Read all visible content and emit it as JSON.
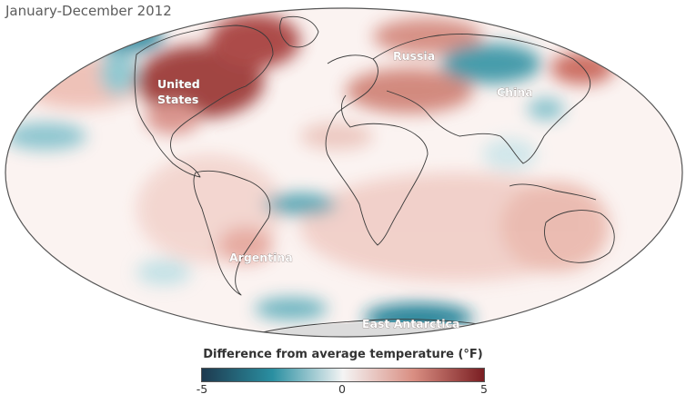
{
  "title": "January-December 2012",
  "map_labels": {
    "united_states": [
      "United",
      "States"
    ],
    "russia": "Russia",
    "china": "China",
    "argentina": "Argentina",
    "east_antarctica": "East Antarctica"
  },
  "legend": {
    "title": "Difference from average temperature (°F)",
    "min_label": "-5",
    "mid_label": "0",
    "max_label": "5",
    "colors": {
      "cold_dark": "#1e3a4f",
      "cold": "#2a8fa1",
      "neutral": "#f4f4f4",
      "warm": "#d98e82",
      "warm_dark": "#7a1e22"
    }
  }
}
